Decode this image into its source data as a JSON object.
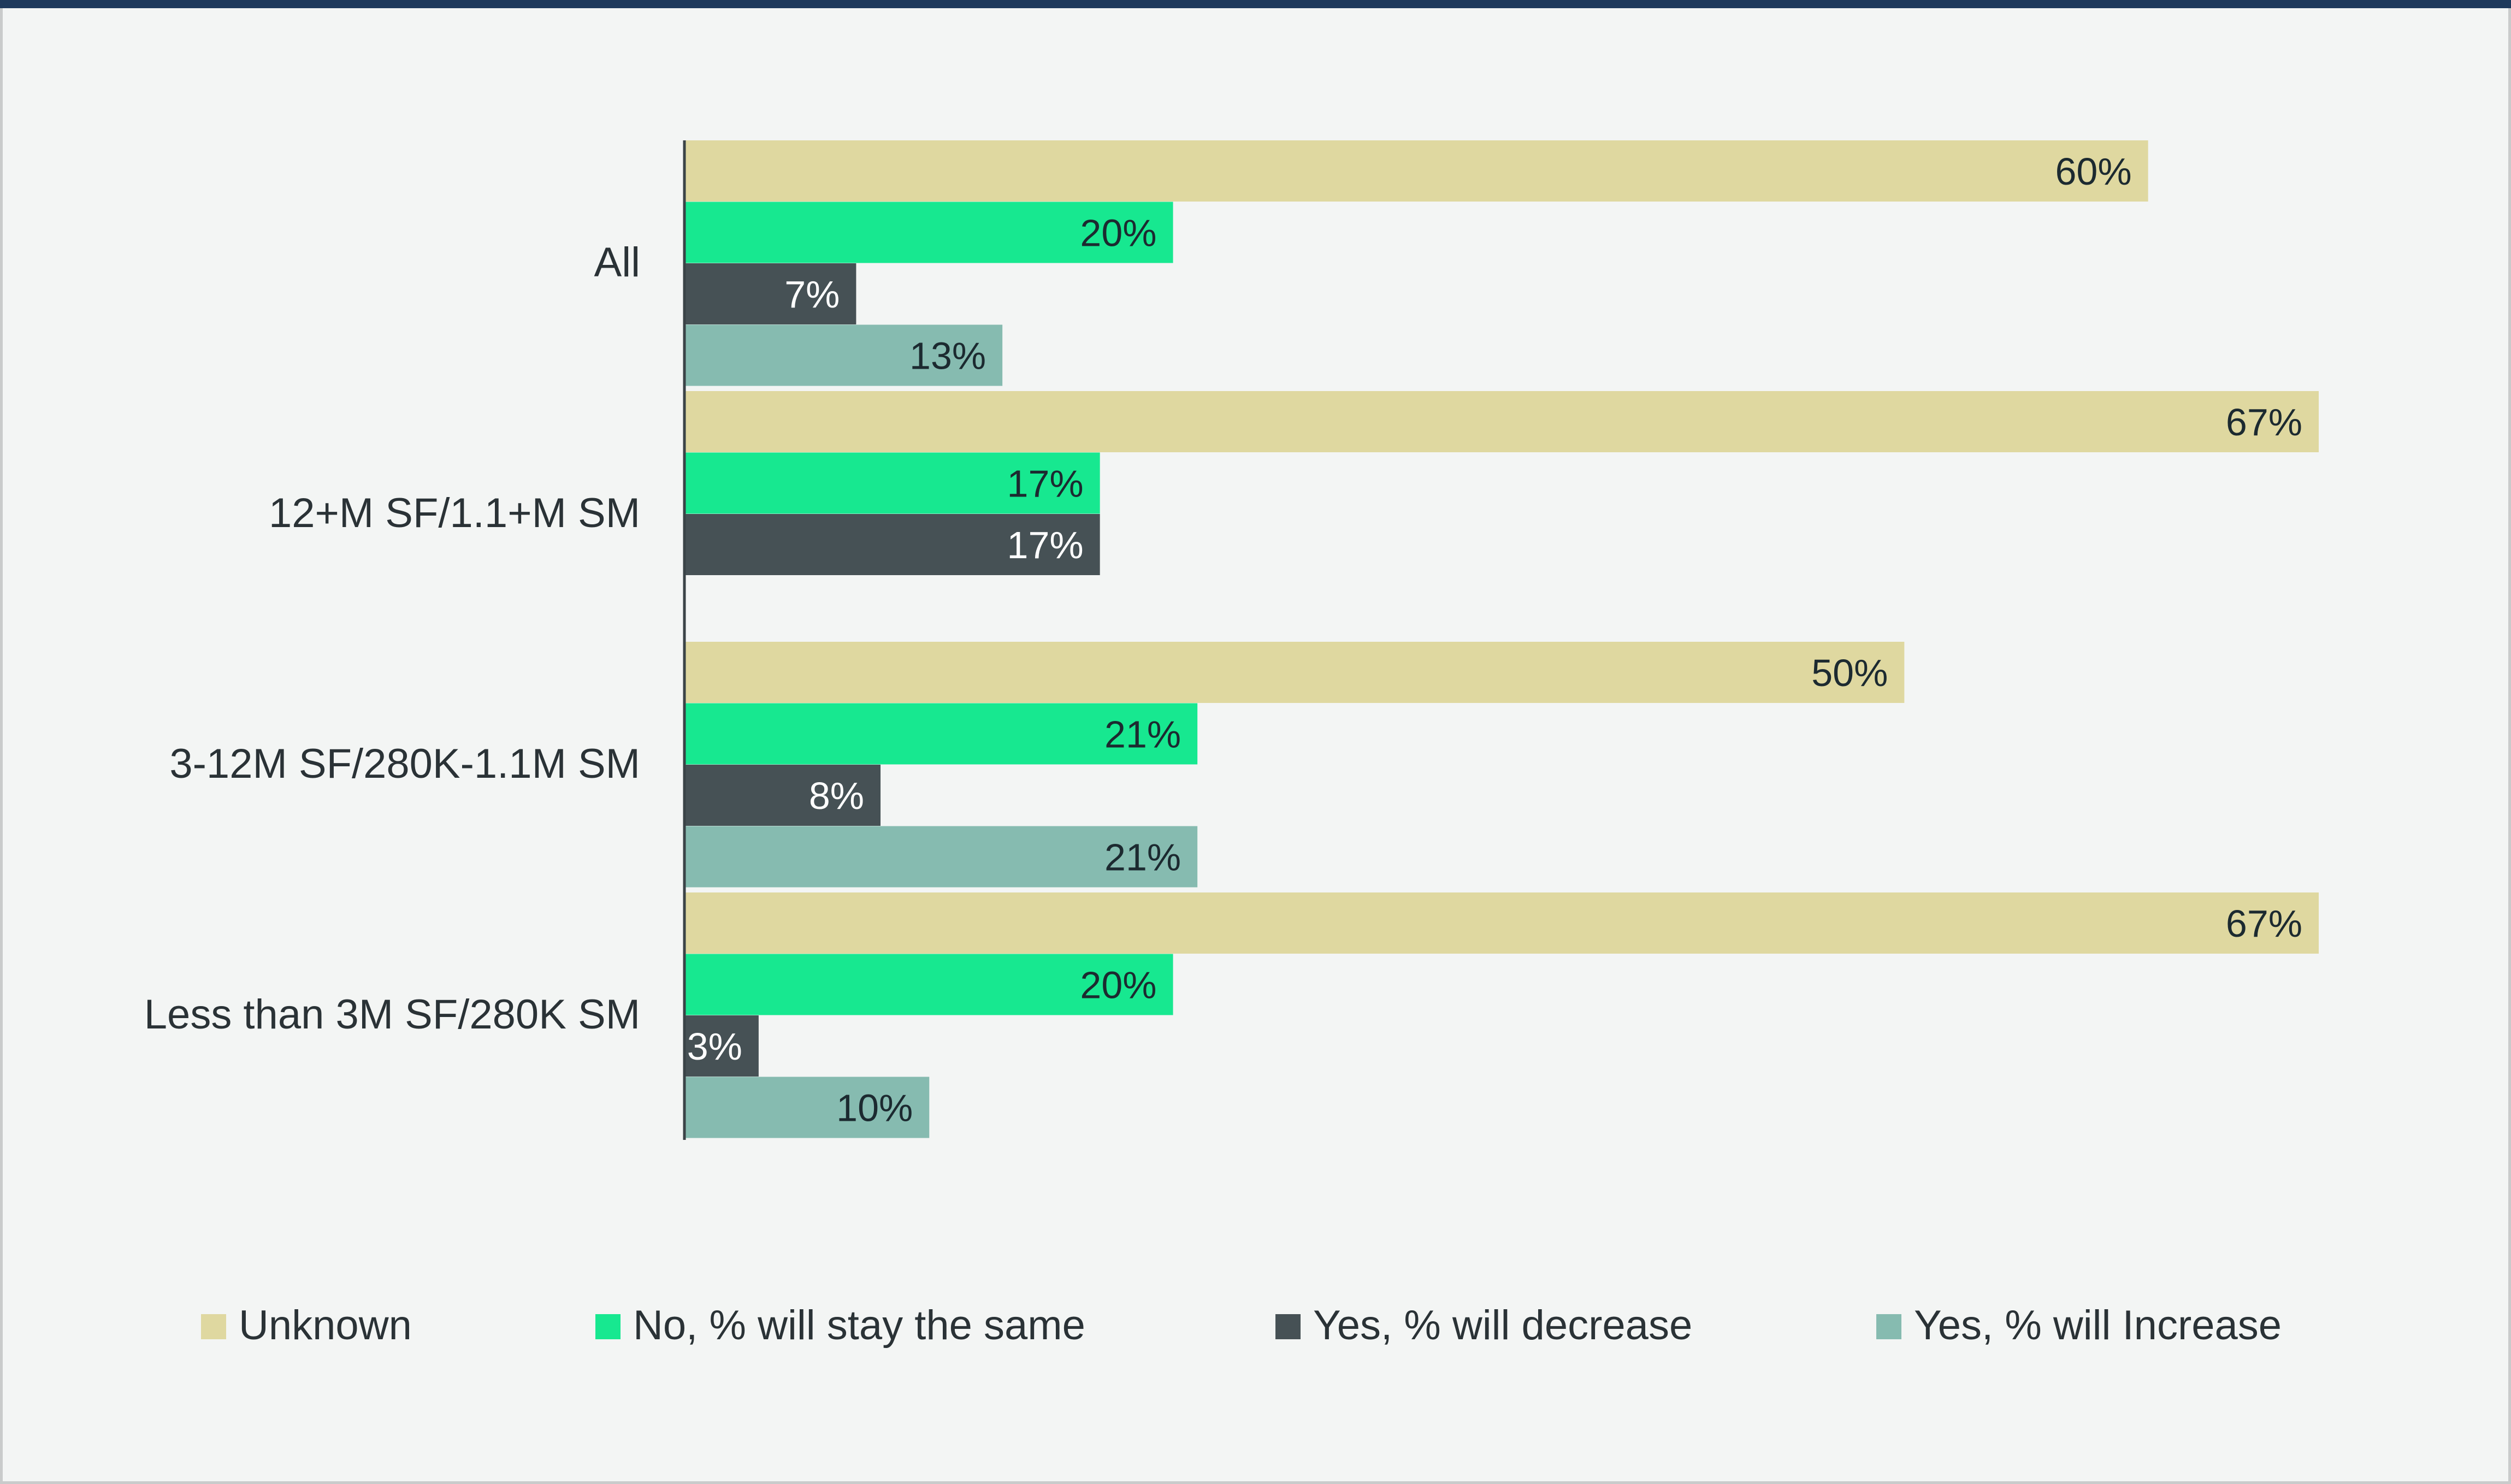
{
  "chart_data": {
    "type": "bar",
    "orientation": "horizontal",
    "categories": [
      "All",
      "12+M SF/1.1+M SM",
      "3-12M SF/280K-1.1M SM",
      "Less than 3M SF/280K SM"
    ],
    "series": [
      {
        "name": "Unknown",
        "color": "#dfd8a0",
        "values": [
          60,
          67,
          50,
          67
        ],
        "labels": [
          "60%",
          "67%",
          "50%",
          "67%"
        ]
      },
      {
        "name": "No, % will stay the same",
        "color": "#17e890",
        "values": [
          20,
          17,
          21,
          20
        ],
        "labels": [
          "20%",
          "17%",
          "21%",
          "20%"
        ]
      },
      {
        "name": "Yes, % will decrease",
        "color": "#465155",
        "values": [
          7,
          17,
          8,
          3
        ],
        "labels": [
          "7%",
          "17%",
          "8%",
          "3%"
        ]
      },
      {
        "name": "Yes, % will Increase",
        "color": "#86bbb0",
        "values": [
          13,
          null,
          21,
          10
        ],
        "labels": [
          "13%",
          null,
          "21%",
          "10%"
        ]
      }
    ],
    "label_colors": [
      "#1c2a30",
      "#1c2a30",
      "#ffffff",
      "#1c2a30"
    ],
    "xlim": [
      0,
      67
    ],
    "grid": false,
    "legend_position": "bottom"
  }
}
